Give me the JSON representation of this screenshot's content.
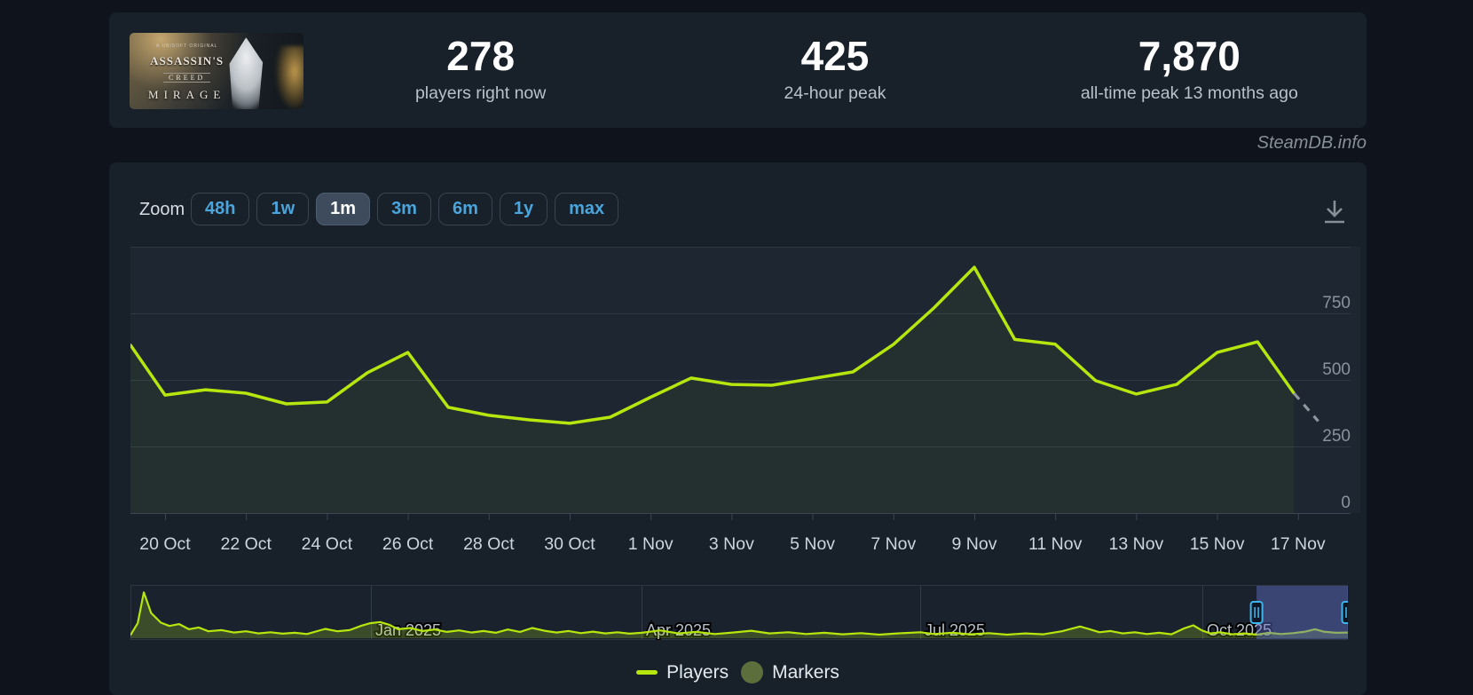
{
  "header": {
    "banner": {
      "tagline": "A UBISOFT ORIGINAL",
      "brand_top": "ASSASSIN'S",
      "brand_mid": "CREED",
      "title": "MIRAGE"
    },
    "stats": [
      {
        "value": "278",
        "label": "players right now"
      },
      {
        "value": "425",
        "label": "24-hour peak"
      },
      {
        "value": "7,870",
        "label": "all-time peak 13 months ago"
      }
    ]
  },
  "watermark": "SteamDB.info",
  "toolbar": {
    "zoom_label": "Zoom",
    "ranges": [
      "48h",
      "1w",
      "1m",
      "3m",
      "6m",
      "1y",
      "max"
    ],
    "selected_range": "1m",
    "download_icon": "download-icon"
  },
  "colors": {
    "page_bg": "#0f141c",
    "panel_bg": "#18202a",
    "plot_bg": "#1d2631",
    "gridline": "#2e3946",
    "axis_line": "#3b4654",
    "players_line": "#b5e60d",
    "projection_dash": "#8e979e",
    "accent_blue": "#4aa5dd",
    "selection_fill": "rgba(99,113,205,0.45)",
    "handle_stroke": "#3fb3ea",
    "y_label": "#8b949d",
    "x_label": "#cbd5dd",
    "month_label": "#b6c0ca",
    "markers_dot": "#5c6e3c"
  },
  "chart_data": {
    "type": "line",
    "title": "",
    "ylabel": "",
    "xlabel": "",
    "ylim": [
      0,
      1000
    ],
    "yticks": [
      0,
      250,
      500,
      750
    ],
    "grid": true,
    "legend_position": "bottom",
    "x_tick_days": [
      0,
      2,
      4,
      6,
      8,
      10,
      12,
      14,
      16,
      18,
      20,
      22,
      24,
      26,
      28
    ],
    "x_tick_labels": [
      "20 Oct",
      "22 Oct",
      "24 Oct",
      "26 Oct",
      "28 Oct",
      "30 Oct",
      "1 Nov",
      "3 Nov",
      "5 Nov",
      "7 Nov",
      "9 Nov",
      "11 Nov",
      "13 Nov",
      "15 Nov",
      "17 Nov"
    ],
    "series": [
      {
        "name": "Players",
        "color": "#b5e60d",
        "points_day_value": [
          [
            -0.85,
            630
          ],
          [
            0,
            443
          ],
          [
            1,
            463
          ],
          [
            2,
            450
          ],
          [
            3,
            410
          ],
          [
            4,
            417
          ],
          [
            5,
            527
          ],
          [
            6,
            603
          ],
          [
            7,
            397
          ],
          [
            8,
            367
          ],
          [
            9,
            350
          ],
          [
            10,
            337
          ],
          [
            11,
            360
          ],
          [
            12,
            435
          ],
          [
            13,
            507
          ],
          [
            14,
            483
          ],
          [
            15,
            480
          ],
          [
            16,
            505
          ],
          [
            17,
            530
          ],
          [
            18,
            633
          ],
          [
            19,
            770
          ],
          [
            20,
            923
          ],
          [
            21,
            652
          ],
          [
            22,
            634
          ],
          [
            23,
            497
          ],
          [
            24,
            447
          ],
          [
            25,
            483
          ],
          [
            26,
            603
          ],
          [
            27,
            643
          ],
          [
            27.9,
            450
          ]
        ],
        "dashed_projection": [
          [
            27.9,
            450
          ],
          [
            28.5,
            345
          ]
        ]
      }
    ],
    "navigator": {
      "max_value": 8000,
      "months": [
        {
          "label": "Jan 2025",
          "pct": 19.75
        },
        {
          "label": "Apr 2025",
          "pct": 41.98
        },
        {
          "label": "Jul 2025",
          "pct": 64.87
        },
        {
          "label": "Oct 2025",
          "pct": 88.05
        }
      ],
      "selection_pct": [
        92.5,
        100
      ],
      "points_pct_value": [
        [
          0,
          500
        ],
        [
          0.6,
          2500
        ],
        [
          1.1,
          7650
        ],
        [
          1.7,
          4200
        ],
        [
          2.5,
          2600
        ],
        [
          3.2,
          2050
        ],
        [
          4,
          2350
        ],
        [
          4.8,
          1500
        ],
        [
          5.6,
          1800
        ],
        [
          6.4,
          1150
        ],
        [
          7.5,
          1350
        ],
        [
          8.5,
          950
        ],
        [
          9.5,
          1150
        ],
        [
          10.5,
          800
        ],
        [
          11.5,
          1000
        ],
        [
          12.5,
          750
        ],
        [
          13.5,
          900
        ],
        [
          14.5,
          700
        ],
        [
          16,
          1550
        ],
        [
          17,
          1150
        ],
        [
          18,
          1350
        ],
        [
          19,
          2100
        ],
        [
          19.7,
          2500
        ],
        [
          20.5,
          2700
        ],
        [
          21.3,
          2200
        ],
        [
          22,
          1500
        ],
        [
          23,
          1700
        ],
        [
          24,
          1200
        ],
        [
          25,
          1450
        ],
        [
          26,
          1050
        ],
        [
          27,
          1300
        ],
        [
          28,
          950
        ],
        [
          29,
          1200
        ],
        [
          30,
          900
        ],
        [
          31,
          1450
        ],
        [
          32,
          1050
        ],
        [
          33,
          1700
        ],
        [
          34,
          1250
        ],
        [
          35,
          950
        ],
        [
          36,
          1200
        ],
        [
          37,
          850
        ],
        [
          38,
          1100
        ],
        [
          39,
          800
        ],
        [
          40,
          1000
        ],
        [
          41,
          750
        ],
        [
          42,
          900
        ],
        [
          43.5,
          1300
        ],
        [
          45,
          800
        ],
        [
          46.5,
          1050
        ],
        [
          48,
          700
        ],
        [
          49.5,
          950
        ],
        [
          51,
          1250
        ],
        [
          52.5,
          800
        ],
        [
          54,
          1000
        ],
        [
          55.5,
          700
        ],
        [
          57,
          900
        ],
        [
          58.5,
          650
        ],
        [
          60,
          850
        ],
        [
          61.5,
          600
        ],
        [
          63,
          800
        ],
        [
          64.9,
          1000
        ],
        [
          66,
          700
        ],
        [
          67.5,
          900
        ],
        [
          69,
          650
        ],
        [
          70.5,
          850
        ],
        [
          72,
          600
        ],
        [
          73.5,
          800
        ],
        [
          75,
          650
        ],
        [
          76.5,
          1150
        ],
        [
          78,
          1950
        ],
        [
          78.8,
          1500
        ],
        [
          79.6,
          1000
        ],
        [
          80.5,
          1200
        ],
        [
          81.5,
          800
        ],
        [
          82.5,
          1000
        ],
        [
          83.5,
          700
        ],
        [
          84.5,
          900
        ],
        [
          85.5,
          650
        ],
        [
          86.5,
          1600
        ],
        [
          87.3,
          2150
        ],
        [
          88,
          1300
        ],
        [
          88.7,
          800
        ],
        [
          89.5,
          1000
        ],
        [
          90.5,
          650
        ],
        [
          91.5,
          800
        ],
        [
          92.5,
          600
        ],
        [
          93.5,
          900
        ],
        [
          94.5,
          700
        ],
        [
          95.5,
          850
        ],
        [
          96.5,
          1100
        ],
        [
          97.3,
          1500
        ],
        [
          98,
          1100
        ],
        [
          99,
          900
        ],
        [
          100,
          950
        ]
      ]
    }
  },
  "legend": [
    {
      "label": "Players",
      "swatch": "line",
      "color": "#b5e60d"
    },
    {
      "label": "Markers",
      "swatch": "circle",
      "color": "#5c6e3c"
    }
  ]
}
